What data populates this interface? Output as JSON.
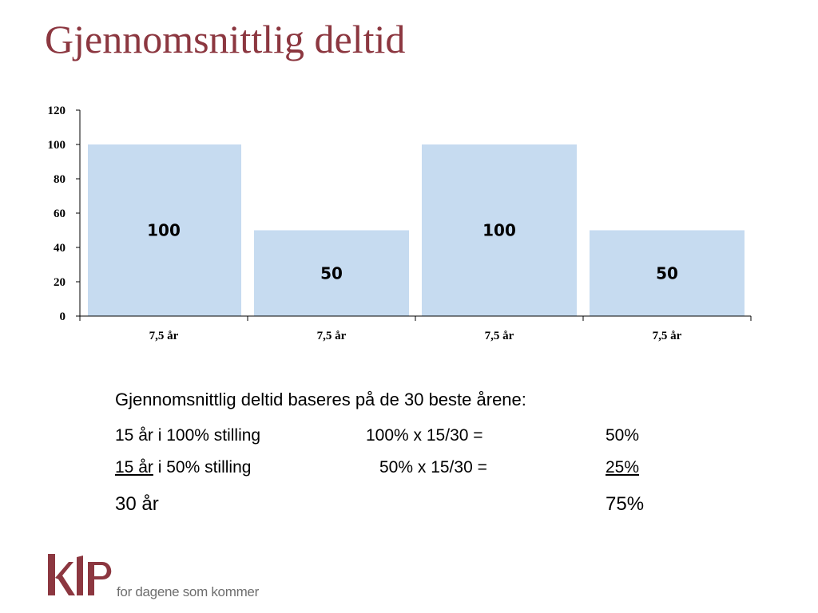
{
  "slide": {
    "title": "Gjennomsnittlig deltid"
  },
  "chart_data": {
    "type": "bar",
    "categories": [
      "7,5 år",
      "7,5 år",
      "7,5 år",
      "7,5 år"
    ],
    "values": [
      100,
      50,
      100,
      50
    ],
    "data_labels": [
      "100",
      "50",
      "100",
      "50"
    ],
    "y_ticks": [
      "0",
      "20",
      "40",
      "60",
      "80",
      "100",
      "120"
    ],
    "ylim": [
      0,
      120
    ],
    "grid": false,
    "legend": "none",
    "bar_color": "#c6dbf0"
  },
  "text": {
    "lead": "Gjennomsnittlig deltid baseres på de 30 beste årene:",
    "rows": [
      {
        "years": "15 år",
        "desc": " i 100% stilling",
        "calc": "100% x 15/30 =",
        "result": "50%"
      },
      {
        "years": "15 år",
        "desc": " i  50% stilling",
        "calc": "50% x 15/30 =",
        "result": "25%"
      }
    ],
    "total_years": "30 år",
    "total_result": "75%"
  },
  "logo": {
    "name": "klp-logo",
    "wordmark": "KLP",
    "tagline": "for dagene som kommer",
    "color": "#8c3740"
  }
}
